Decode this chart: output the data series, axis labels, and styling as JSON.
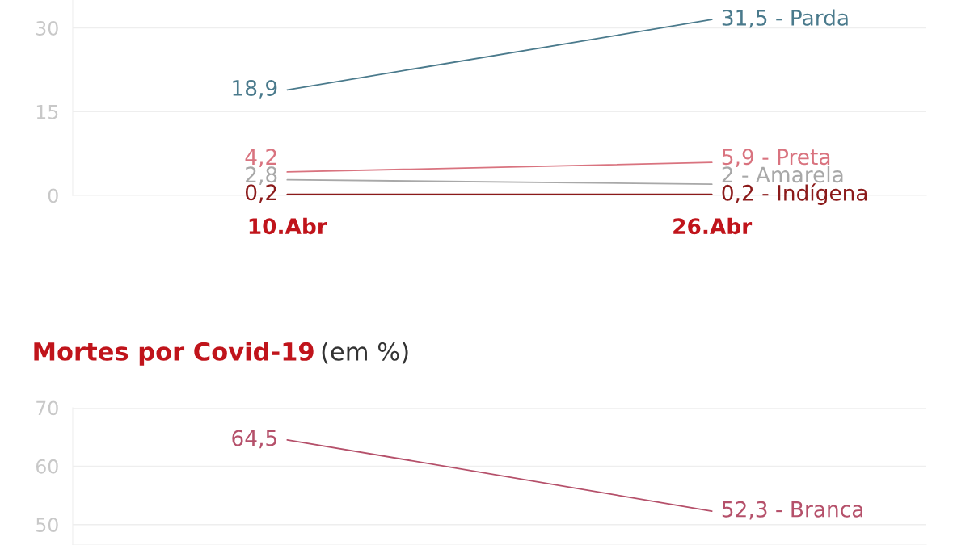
{
  "chart_data": [
    {
      "type": "line",
      "categories": [
        "10.Abr",
        "26.Abr"
      ],
      "ylim": [
        0,
        35
      ],
      "yticks": [
        0,
        15,
        30
      ],
      "grid": "y",
      "legend": false,
      "marker": "none",
      "line_style": "solid",
      "series": [
        {
          "color": "#4a7a8c",
          "values": [
            18.9,
            31.5
          ],
          "value_labels": [
            "18,9",
            "31,5 - Parda"
          ]
        },
        {
          "color": "#d9737f",
          "values": [
            4.2,
            5.9
          ],
          "value_labels": [
            "4,2",
            "5,9 - Preta"
          ]
        },
        {
          "color": "#a8a8a8",
          "values": [
            2.8,
            2
          ],
          "value_labels": [
            "2,8",
            "2 - Amarela"
          ]
        },
        {
          "color": "#8b1a1a",
          "values": [
            0.2,
            0.2
          ],
          "value_labels": [
            "0,2",
            "0,2 - Indígena"
          ]
        }
      ]
    },
    {
      "type": "line",
      "title": "Mortes por Covid-19",
      "subtitle": "(em %)",
      "ylim": [
        46.5,
        70
      ],
      "yticks": [
        50,
        60,
        70
      ],
      "grid": "y",
      "legend": false,
      "marker": "none",
      "line_style": "solid",
      "tick_labels": "y",
      "series": [
        {
          "color": "#b5506a",
          "values": [
            64.5,
            52.3
          ],
          "value_labels": [
            "64,5",
            "52,3 - Branca"
          ]
        }
      ]
    }
  ]
}
